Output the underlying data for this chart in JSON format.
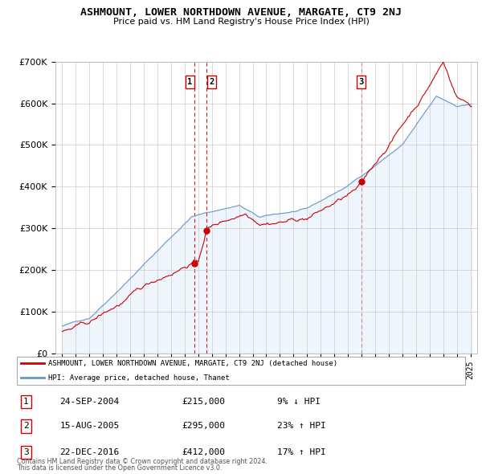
{
  "title": "ASHMOUNT, LOWER NORTHDOWN AVENUE, MARGATE, CT9 2NJ",
  "subtitle": "Price paid vs. HM Land Registry's House Price Index (HPI)",
  "legend_line1": "ASHMOUNT, LOWER NORTHDOWN AVENUE, MARGATE, CT9 2NJ (detached house)",
  "legend_line2": "HPI: Average price, detached house, Thanet",
  "transactions": [
    {
      "num": 1,
      "date": "24-SEP-2004",
      "price": 215000,
      "pct": "9%",
      "dir": "↓",
      "year": 2004.73
    },
    {
      "num": 2,
      "date": "15-AUG-2005",
      "price": 295000,
      "pct": "23%",
      "dir": "↑",
      "year": 2005.62
    },
    {
      "num": 3,
      "date": "22-DEC-2016",
      "price": 412000,
      "pct": "17%",
      "dir": "↑",
      "year": 2016.98
    }
  ],
  "footer1": "Contains HM Land Registry data © Crown copyright and database right 2024.",
  "footer2": "This data is licensed under the Open Government Licence v3.0.",
  "property_color": "#cc0000",
  "hpi_color": "#6699cc",
  "hpi_fill_color": "#d0e4f7",
  "transaction_vline_color": "#cc0000",
  "background_color": "#ffffff",
  "grid_color": "#cccccc",
  "ylim": [
    0,
    700000
  ],
  "xlim_start": 1994.5,
  "xlim_end": 2025.5
}
